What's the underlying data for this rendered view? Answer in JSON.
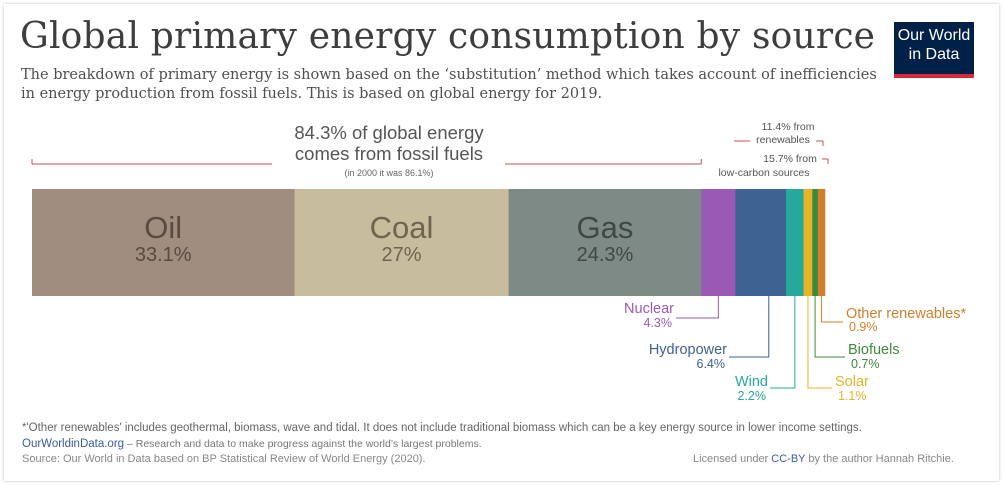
{
  "header": {
    "title": "Global primary energy consumption by source",
    "subtitle_line1": "The breakdown of primary energy is shown based on the ‘substitution’ method which takes account of inefficiencies",
    "subtitle_line2": "in energy production from fossil fuels. This is based on global energy for 2019."
  },
  "logo": {
    "line1": "Our World",
    "line2": "in Data"
  },
  "annotations": {
    "fossil_line1": "84.3% of global energy",
    "fossil_line2": "comes from fossil fuels",
    "fossil_note": "(in 2000 it was 86.1%)",
    "renewables_line1": "11.4% from",
    "renewables_line2": "renewables",
    "lowcarbon_line1": "15.7% from",
    "lowcarbon_line2": "low-carbon sources"
  },
  "colors": {
    "Oil": "#a08d80",
    "Coal": "#c7bc9b",
    "Gas": "#7e8a85",
    "Nuclear": "#9b59b6",
    "Hydropower": "#3e6291",
    "Wind": "#25a99c",
    "Solar": "#e8b229",
    "Biofuels": "#3d8a3d",
    "Other renewables": "#d07f2a",
    "annotation": "#c0504d"
  },
  "chart_data": {
    "type": "bar",
    "orientation": "horizontal-stacked",
    "categories": [
      "Oil",
      "Coal",
      "Gas",
      "Nuclear",
      "Hydropower",
      "Wind",
      "Solar",
      "Biofuels",
      "Other renewables"
    ],
    "values": [
      33.1,
      27,
      24.3,
      4.3,
      6.4,
      2.2,
      1.1,
      0.7,
      0.9
    ],
    "labels": [
      "33.1%",
      "27%",
      "24.3%",
      "4.3%",
      "6.4%",
      "2.2%",
      "1.1%",
      "0.7%",
      "0.9%"
    ],
    "title": "Global primary energy consumption by source",
    "unit": "%"
  },
  "footer": {
    "note": "*'Other renewables' includes geothermal, biomass, wave and tidal. It does not include traditional biomass which can be a key energy source in lower income settings.",
    "owid_link": "OurWorldinData.org",
    "owid_desc": " – Research and data to make progress against the world’s largest problems.",
    "source": "Source: Our World in Data based on BP Statistical Review of World Energy (2020).",
    "license_prefix": "Licensed under ",
    "license_link": "CC-BY",
    "license_suffix": " by the author Hannah Ritchie."
  }
}
